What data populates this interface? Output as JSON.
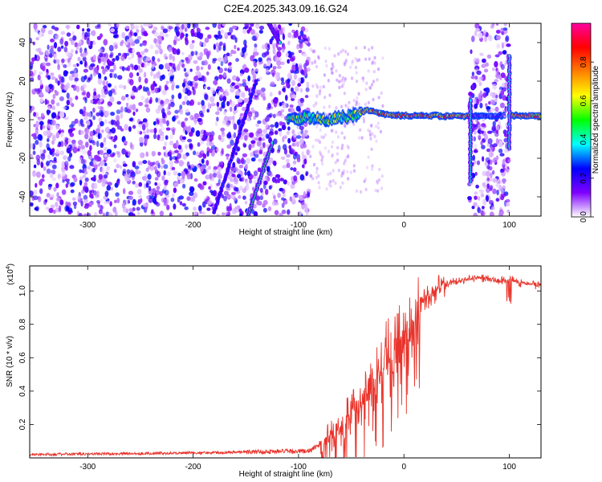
{
  "title": "C2E4.2025.343.09.16.G24",
  "chart_data": [
    {
      "type": "heatmap",
      "name": "spectrogram",
      "xlabel": "Height of straight line (km)",
      "ylabel": "Frequency (Hz)",
      "xlim": [
        -355,
        130
      ],
      "ylim": [
        -50,
        50
      ],
      "xticks": [
        -300,
        -200,
        -100,
        0,
        100
      ],
      "yticks": [
        -40,
        -20,
        0,
        20,
        40
      ],
      "colorbar": {
        "label": "Normalized spectral amplitude",
        "range": [
          0.0,
          1.0
        ],
        "ticks": [
          "0.0",
          "0.2",
          "0.4",
          "0.6",
          "0.8"
        ],
        "colors": [
          "#ffffff",
          "#7f00ff",
          "#0000ff",
          "#00ffff",
          "#00ff00",
          "#ffff00",
          "#ff8000",
          "#ff0000",
          "#ff00a0"
        ]
      },
      "noise_regions": [
        {
          "x0": -355,
          "x1": -90,
          "density": 1.0,
          "level": 0.3
        },
        {
          "x0": 62,
          "x1": 100,
          "density": 1.0,
          "level": 0.3
        }
      ],
      "carrier_track": [
        [
          -110,
          0
        ],
        [
          -90,
          1
        ],
        [
          -70,
          0
        ],
        [
          -50,
          2
        ],
        [
          -35,
          5
        ],
        [
          -20,
          3
        ],
        [
          0,
          2
        ],
        [
          30,
          2
        ],
        [
          62,
          2
        ],
        [
          100,
          2
        ],
        [
          130,
          2
        ]
      ],
      "streaks": [
        {
          "x": [
            -180,
            -140
          ],
          "y": [
            -48,
            20
          ],
          "level": 0.25
        },
        {
          "x": [
            -148,
            -125
          ],
          "y": [
            -50,
            -12
          ],
          "level": 0.45
        },
        {
          "x": [
            -128,
            -118
          ],
          "y": [
            50,
            40
          ],
          "level": 0.45
        },
        {
          "x": [
            63,
            63
          ],
          "y": [
            -32,
            10
          ],
          "level": 0.4
        },
        {
          "x": [
            100,
            100
          ],
          "y": [
            -15,
            33
          ],
          "level": 0.4
        }
      ]
    },
    {
      "type": "line",
      "name": "snr",
      "xlabel": "Height of straight line (km)",
      "ylabel": "SNR (10 * v/v)",
      "y_multiplier": "(x10",
      "y_multiplier_exp": "4",
      "y_multiplier_close": ")",
      "xlim": [
        -355,
        130
      ],
      "ylim": [
        0,
        1.15
      ],
      "xticks": [
        -300,
        -200,
        -100,
        0,
        100
      ],
      "yticks": [
        0.2,
        0.4,
        0.6,
        0.8,
        1.0
      ],
      "color": "#e8342b",
      "envelope": [
        [
          -355,
          0.02
        ],
        [
          -200,
          0.03
        ],
        [
          -110,
          0.04
        ],
        [
          -90,
          0.04
        ],
        [
          -75,
          0.1
        ],
        [
          -60,
          0.18
        ],
        [
          -45,
          0.3
        ],
        [
          -30,
          0.45
        ],
        [
          -15,
          0.58
        ],
        [
          0,
          0.7
        ],
        [
          10,
          0.8
        ],
        [
          20,
          0.95
        ],
        [
          35,
          1.03
        ],
        [
          50,
          1.06
        ],
        [
          70,
          1.08
        ],
        [
          90,
          1.06
        ],
        [
          100,
          1.07
        ],
        [
          110,
          1.05
        ],
        [
          130,
          1.03
        ]
      ]
    }
  ]
}
